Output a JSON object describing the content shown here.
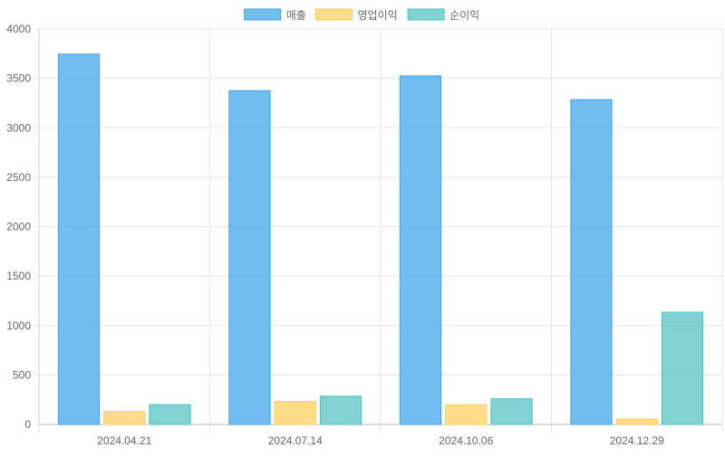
{
  "chart_data": {
    "type": "bar",
    "categories": [
      "2024.04.21",
      "2024.07.14",
      "2024.10.06",
      "2024.12.29"
    ],
    "series": [
      {
        "name": "매출",
        "values": [
          3745,
          3375,
          3525,
          3285
        ],
        "color": "#36A2EB"
      },
      {
        "name": "영업이익",
        "values": [
          130,
          232,
          198,
          55
        ],
        "color": "#FFCD56"
      },
      {
        "name": "순이익",
        "values": [
          200,
          285,
          260,
          1135
        ],
        "color": "#4BC0C0"
      }
    ],
    "ylim": [
      0,
      4000
    ],
    "yticks": [
      0,
      500,
      1000,
      1500,
      2000,
      2500,
      3000,
      3500,
      4000
    ],
    "grid": true,
    "legend": "top-center",
    "title": "",
    "xlabel": "",
    "ylabel": ""
  }
}
